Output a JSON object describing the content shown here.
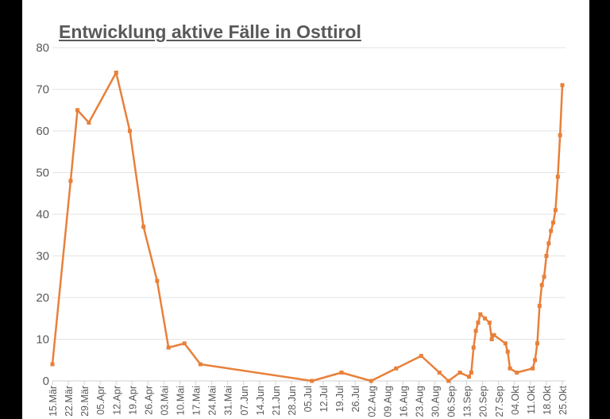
{
  "chart_data": {
    "type": "line",
    "title": "Entwicklung aktive Fälle in Osttirol",
    "xlabel": "",
    "ylabel": "",
    "ylim": [
      0,
      80
    ],
    "yticks": [
      0,
      10,
      20,
      30,
      40,
      50,
      60,
      70,
      80
    ],
    "xlim": [
      "2020-03-15",
      "2020-10-25"
    ],
    "xtick_labels": [
      "15.Mär",
      "22.Mär",
      "29.Mär",
      "05.Apr",
      "12.Apr",
      "19.Apr",
      "26.Apr",
      "03.Mai",
      "10.Mai",
      "17.Mai",
      "24.Mai",
      "31.Mai",
      "07.Jun",
      "14.Jun",
      "21.Jun",
      "28.Jun",
      "05.Jul",
      "12.Jul",
      "19.Jul",
      "26.Jul",
      "02.Aug",
      "09.Aug",
      "16.Aug",
      "23.Aug",
      "30.Aug",
      "06.Sep",
      "13.Sep",
      "20.Sep",
      "27.Sep",
      "04.Okt",
      "11.Okt",
      "18.Okt",
      "25.Okt"
    ],
    "grid": true,
    "color": "#E8803A",
    "x": [
      "2020-03-15",
      "2020-03-23",
      "2020-03-26",
      "2020-03-31",
      "2020-04-12",
      "2020-04-18",
      "2020-04-24",
      "2020-04-30",
      "2020-05-05",
      "2020-05-12",
      "2020-05-19",
      "2020-07-07",
      "2020-07-20",
      "2020-08-02",
      "2020-08-13",
      "2020-08-24",
      "2020-09-01",
      "2020-09-05",
      "2020-09-10",
      "2020-09-14",
      "2020-09-15",
      "2020-09-16",
      "2020-09-17",
      "2020-09-18",
      "2020-09-19",
      "2020-09-21",
      "2020-09-23",
      "2020-09-24",
      "2020-09-25",
      "2020-09-30",
      "2020-10-01",
      "2020-10-02",
      "2020-10-05",
      "2020-10-12",
      "2020-10-13",
      "2020-10-14",
      "2020-10-15",
      "2020-10-16",
      "2020-10-17",
      "2020-10-18",
      "2020-10-19",
      "2020-10-20",
      "2020-10-21",
      "2020-10-22",
      "2020-10-23",
      "2020-10-24",
      "2020-10-25"
    ],
    "values": [
      4,
      48,
      65,
      62,
      74,
      60,
      37,
      24,
      8,
      9,
      4,
      0,
      2,
      0,
      3,
      6,
      2,
      0,
      2,
      1,
      2,
      8,
      12,
      14,
      16,
      15,
      14,
      10,
      11,
      9,
      7,
      3,
      2,
      3,
      5,
      9,
      18,
      23,
      25,
      30,
      33,
      36,
      38,
      41,
      49,
      59,
      71
    ]
  }
}
